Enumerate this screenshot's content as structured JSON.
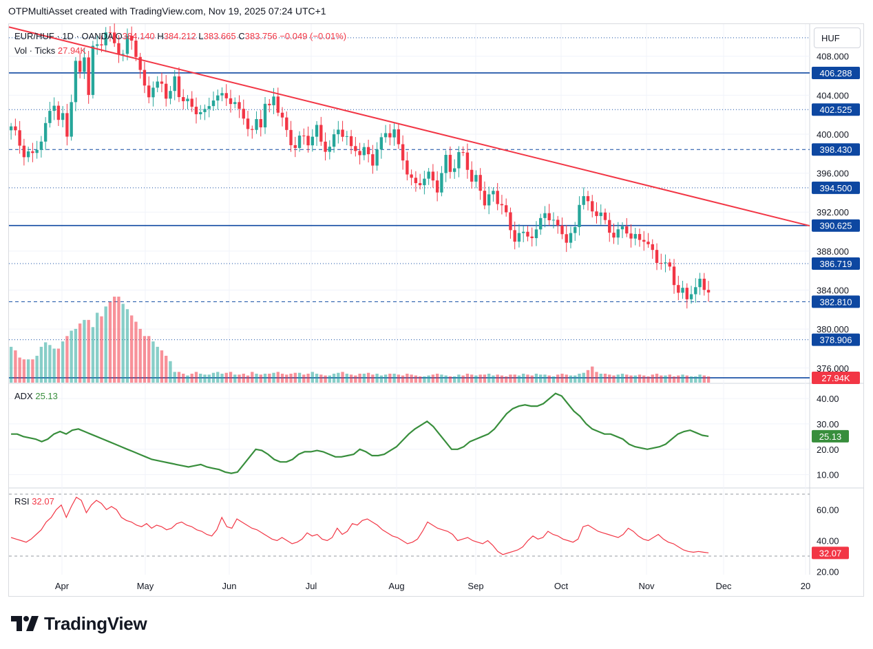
{
  "header": {
    "attribution": "OTPMultiAsset created with TradingView.com, Nov 19, 2025 07:24 UTC+1"
  },
  "legend": {
    "symbol": "EUR/HUF · 1D · OANDA",
    "open_label": "O",
    "open": "384.140",
    "high_label": "H",
    "high": "384.212",
    "low_label": "L",
    "low": "383.665",
    "close_label": "C",
    "close": "383.756",
    "change": "−0.049 (−0.01%)",
    "volume_label": "Vol · Ticks",
    "volume_value": "27.94K"
  },
  "currency_button": "HUF",
  "brand": {
    "name": "TradingView"
  },
  "colors": {
    "up": "#26a69a",
    "down": "#f23645",
    "trendline": "#f23645",
    "level": "#0d47a1",
    "adx": "#388e3c",
    "rsi": "#f23645"
  },
  "chart_data": {
    "type": "candlestick",
    "symbol": "EUR/HUF",
    "interval": "1D",
    "price_axis": {
      "ylim": [
        374.5,
        411.3
      ],
      "ticks": [
        "408.000",
        "404.000",
        "400.000",
        "396.000",
        "392.000",
        "388.000",
        "384.000",
        "380.000",
        "376.000"
      ]
    },
    "x_labels": [
      "Apr",
      "May",
      "Jun",
      "Jul",
      "Aug",
      "Sep",
      "Oct",
      "Nov",
      "Dec",
      "20"
    ],
    "price_labels": [
      "406.288",
      "402.525",
      "398.430",
      "394.500",
      "390.625",
      "386.719",
      "382.810",
      "378.906"
    ],
    "horizontal_levels": [
      {
        "price": 409.9,
        "style": "dotted"
      },
      {
        "price": 406.288,
        "style": "solid"
      },
      {
        "price": 402.525,
        "style": "dotted"
      },
      {
        "price": 398.43,
        "style": "dashed"
      },
      {
        "price": 394.5,
        "style": "dotted"
      },
      {
        "price": 390.625,
        "style": "solid"
      },
      {
        "price": 386.719,
        "style": "dotted"
      },
      {
        "price": 382.81,
        "style": "dashed"
      },
      {
        "price": 378.906,
        "style": "dotted"
      },
      {
        "price": 375.0,
        "style": "solid"
      }
    ],
    "trendline": {
      "from": {
        "bar": 0,
        "price": 411.0
      },
      "to": {
        "bar": 186,
        "price": 390.6
      }
    },
    "last_price_label": "27.94K",
    "ohlc": {
      "open": 384.14,
      "high": 384.212,
      "low": 383.665,
      "close": 383.756,
      "change": -0.049,
      "change_pct": -0.01
    },
    "close_path": [
      400.5,
      399.8,
      399,
      398.3,
      397.8,
      398.5,
      399.2,
      400.6,
      402.3,
      403.6,
      401.8,
      399.6,
      403.4,
      407.2,
      406.1,
      408.4,
      404.6,
      408.8,
      409.2,
      410.4,
      410.1,
      409.6,
      408.9,
      408.2,
      409.5,
      408.1,
      406.4,
      405.0,
      404.4,
      405.0,
      404.8,
      403.9,
      404.5,
      405.8,
      404.2,
      403.8,
      403.2,
      402.2,
      402.6,
      402.5,
      403.0,
      403.9,
      403.8,
      403.5,
      403.6,
      403.4,
      402.5,
      401.9,
      400.6,
      399.8,
      401.2,
      403.5,
      402.8,
      403.9,
      402.4,
      401.3,
      399.9,
      399.2,
      399.8,
      399.6,
      399.0,
      399.6,
      400.4,
      399.3,
      398.9,
      399.6,
      400.4,
      399.8,
      399.4,
      398.6,
      398.9,
      398.3,
      397.6,
      396.9,
      398.3,
      399.4,
      400.5,
      400.3,
      398.4,
      397.3,
      396.0,
      395.3,
      395.1,
      395.4,
      395.5,
      395.0,
      394.3,
      396.0,
      397.8,
      396.6,
      396.8,
      397.6,
      396.6,
      395.4,
      395.7,
      394.4,
      393.1,
      393.5,
      392.9,
      393.2,
      392.0,
      390.1,
      389.3,
      389.8,
      389.3,
      389.9,
      390.5,
      391.2,
      392.0,
      391.3,
      390.7,
      390.2,
      389.4,
      389.7,
      390.3,
      392.9,
      393.4,
      392.6,
      392.3,
      392.0,
      390.8,
      389.9,
      389.4,
      389.8,
      390.5,
      389.6,
      389.3,
      388.9,
      389.1,
      388.5,
      387.9,
      387.3,
      386.5,
      385.9,
      384.6,
      383.8,
      384.0,
      383.3,
      384.2,
      384.5,
      383.9,
      383.756
    ],
    "volume_path": [
      40,
      36,
      28,
      26,
      26,
      30,
      40,
      45,
      42,
      38,
      46,
      52,
      58,
      60,
      66,
      70,
      62,
      78,
      74,
      85,
      90,
      96,
      88,
      82,
      75,
      68,
      60,
      52,
      46,
      40,
      36,
      30,
      24,
      12,
      10,
      8,
      10,
      12,
      10,
      9,
      11,
      12,
      10,
      11,
      12,
      9,
      10,
      8,
      12,
      10,
      9,
      10,
      11,
      12,
      10,
      9,
      10,
      11,
      9,
      10,
      12,
      10,
      9,
      8,
      10,
      11,
      12,
      10,
      9,
      8,
      10,
      11,
      9,
      10,
      8,
      9,
      10,
      9,
      8,
      10,
      9,
      8,
      7,
      8,
      9,
      10,
      9,
      8,
      7,
      9,
      8,
      10,
      9,
      8,
      9,
      10,
      8,
      9,
      8,
      7,
      9,
      8,
      10,
      9,
      8,
      10,
      9,
      8,
      7,
      9,
      10,
      9,
      8,
      10,
      11,
      14,
      18,
      12,
      10,
      9,
      8,
      9,
      10,
      9,
      8,
      9,
      8,
      7,
      9,
      10,
      8,
      9,
      7,
      8,
      9,
      8,
      7,
      9,
      8,
      7
    ],
    "adx": {
      "label": "ADX",
      "value": "25.13",
      "ticks": [
        "40.00",
        "30.00",
        "20.00",
        "10.00"
      ],
      "ylim": [
        5,
        46
      ],
      "path": [
        26,
        26,
        25,
        24.5,
        24,
        23,
        24,
        26,
        27,
        26,
        27.5,
        28,
        27,
        26,
        25,
        24,
        23,
        22,
        21,
        20,
        19,
        18,
        17,
        16,
        15.5,
        15,
        14.5,
        14,
        13.5,
        13,
        13.5,
        14,
        13,
        12.5,
        12,
        11,
        10.5,
        11,
        14,
        17,
        20,
        19.5,
        18,
        16,
        15,
        15,
        16,
        18,
        19,
        19,
        19.5,
        19,
        18,
        17,
        17,
        17.5,
        18,
        20,
        19,
        17.5,
        17.5,
        18,
        19.5,
        21,
        23.5,
        26,
        28,
        29.5,
        31,
        29,
        26,
        23,
        20,
        20,
        21,
        23,
        24,
        25,
        26,
        28,
        31,
        34,
        36,
        37,
        37.5,
        37,
        37,
        38,
        40,
        42,
        41,
        38,
        35,
        33,
        30,
        28,
        27,
        26,
        26,
        25,
        24,
        22,
        21,
        20.5,
        20,
        20.5,
        21,
        22,
        24,
        26,
        27,
        27.5,
        26.5,
        25.5,
        25.13
      ]
    },
    "rsi": {
      "label": "RSI",
      "value": "32.07",
      "ticks": [
        "60.00",
        "40.00",
        "20.00"
      ],
      "ylim": [
        18,
        74
      ],
      "bands": [
        70,
        30
      ],
      "path": [
        42,
        41,
        40,
        39,
        41,
        44,
        47,
        52,
        55,
        60,
        63,
        55,
        62,
        68,
        66,
        58,
        63,
        66,
        64,
        60,
        62,
        60,
        55,
        53,
        52,
        50,
        49,
        51,
        48,
        50,
        49,
        47,
        48,
        51,
        52,
        50,
        49,
        47,
        46,
        44,
        43,
        47,
        55,
        49,
        48,
        54,
        52,
        50,
        48,
        47,
        45,
        43,
        41,
        40,
        42,
        40,
        38,
        39,
        41,
        45,
        43,
        44,
        41,
        40,
        42,
        48,
        44,
        46,
        51,
        50,
        53,
        54,
        52,
        50,
        47,
        45,
        43,
        42,
        40,
        38,
        39,
        41,
        46,
        52,
        50,
        48,
        47,
        46,
        44,
        40,
        41,
        42,
        40,
        39,
        38,
        40,
        37,
        33,
        31,
        32,
        33,
        34,
        36,
        40,
        43,
        41,
        42,
        46,
        44,
        43,
        41,
        40,
        39,
        41,
        49,
        50,
        48,
        46,
        45,
        44,
        43,
        42,
        44,
        48,
        46,
        43,
        41,
        40,
        42,
        44,
        41,
        39,
        38,
        36,
        34,
        33,
        32.5,
        33,
        32.5,
        32.07
      ]
    }
  }
}
